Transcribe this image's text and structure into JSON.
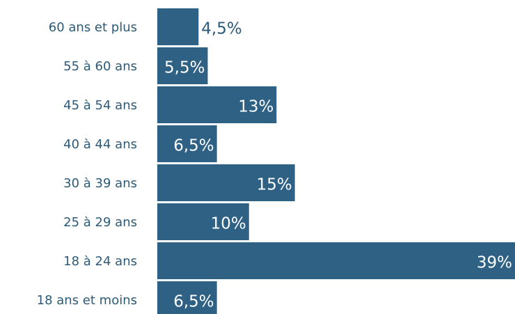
{
  "chart_data": {
    "type": "hbar",
    "categories": [
      "60 ans et plus",
      "55 à 60 ans",
      "45 à 54 ans",
      "40 à 44 ans",
      "30 à 39 ans",
      "25 à 29 ans",
      "18 à 24 ans",
      "18 ans et moins"
    ],
    "values": [
      4.5,
      5.5,
      13,
      6.5,
      15,
      10,
      39,
      6.5
    ],
    "value_labels": [
      "4,5%",
      "5,5%",
      "13%",
      "6,5%",
      "15%",
      "10%",
      "39%",
      "6,5%"
    ],
    "color": "#2e6184",
    "xlim": [
      0,
      39
    ]
  }
}
